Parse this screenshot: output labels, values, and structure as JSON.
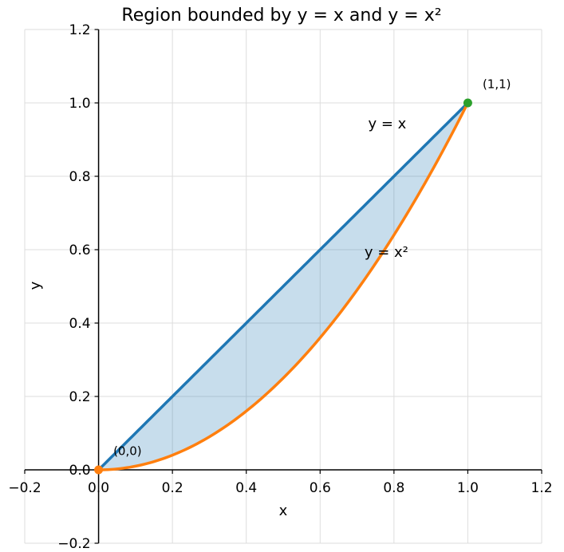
{
  "chart_data": {
    "type": "line",
    "title": "Region bounded by y = x and y = x²",
    "xlabel": "x",
    "ylabel": "y",
    "xlim": [
      -0.2,
      1.2
    ],
    "ylim": [
      -0.2,
      1.2
    ],
    "grid": true,
    "x_ticks": [
      -0.2,
      0.0,
      0.2,
      0.4,
      0.6,
      0.8,
      1.0,
      1.2
    ],
    "x_tick_labels": [
      "−0.2",
      "0.0",
      "0.2",
      "0.4",
      "0.6",
      "0.8",
      "1.0",
      "1.2"
    ],
    "y_ticks": [
      -0.2,
      0.0,
      0.2,
      0.4,
      0.6,
      0.8,
      1.0,
      1.2
    ],
    "y_tick_labels": [
      "−0.2",
      "0.0",
      "0.2",
      "0.4",
      "0.6",
      "0.8",
      "1.0",
      "1.2"
    ],
    "series": [
      {
        "label": "y = x",
        "color": "#1f77b4",
        "function": "x",
        "domain": [
          0,
          1
        ],
        "label_at": [
          0.73,
          0.93
        ]
      },
      {
        "label": "y = x²",
        "color": "#ff7f0e",
        "function": "x^2",
        "domain": [
          0,
          1
        ],
        "label_at": [
          0.72,
          0.58
        ]
      }
    ],
    "shaded_region": {
      "between": [
        "y = x",
        "y = x²"
      ],
      "domain": [
        0,
        1
      ],
      "color": "#1f77b4",
      "opacity": 0.25
    },
    "points": [
      {
        "x": 0,
        "y": 0,
        "label": "(0,0)",
        "color": "#ff7f0e",
        "label_at": [
          0.04,
          0.04
        ]
      },
      {
        "x": 1,
        "y": 1,
        "label": "(1,1)",
        "color": "#2ca02c",
        "label_at": [
          1.04,
          1.04
        ]
      }
    ]
  }
}
